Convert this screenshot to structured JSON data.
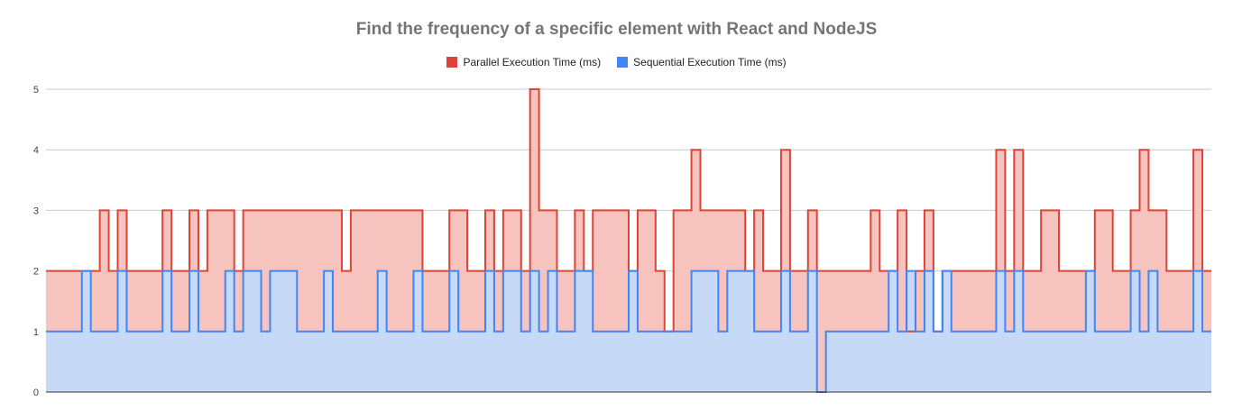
{
  "chart_data": {
    "type": "area",
    "title": "Find the frequency of a specific element with React and NodeJS",
    "xlabel": "",
    "ylabel": "",
    "ylim": [
      0,
      5
    ],
    "yticks": [
      "0",
      "1",
      "2",
      "3",
      "4",
      "5"
    ],
    "grid": true,
    "legend_position": "top",
    "series": [
      {
        "name": "Parallel Execution Time (ms)",
        "color": "#db4437",
        "fill": "#f6c3bf",
        "values": [
          2,
          2,
          2,
          2,
          2,
          2,
          3,
          2,
          3,
          2,
          2,
          2,
          2,
          3,
          2,
          2,
          3,
          2,
          3,
          3,
          3,
          2,
          3,
          3,
          3,
          3,
          3,
          3,
          3,
          3,
          3,
          3,
          3,
          2,
          3,
          3,
          3,
          3,
          3,
          3,
          3,
          3,
          2,
          2,
          2,
          3,
          3,
          2,
          2,
          3,
          2,
          3,
          3,
          2,
          5,
          3,
          3,
          2,
          2,
          3,
          2,
          3,
          3,
          3,
          3,
          2,
          3,
          3,
          2,
          1,
          3,
          3,
          4,
          3,
          3,
          3,
          3,
          3,
          2,
          3,
          2,
          2,
          4,
          2,
          2,
          3,
          2,
          2,
          2,
          2,
          2,
          2,
          3,
          2,
          2,
          3,
          1,
          2,
          3,
          1,
          2,
          2,
          2,
          2,
          2,
          2,
          4,
          2,
          4,
          2,
          2,
          3,
          3,
          2,
          2,
          2,
          2,
          3,
          3,
          2,
          2,
          3,
          4,
          3,
          3,
          2,
          2,
          2,
          4,
          2
        ]
      },
      {
        "name": "Sequential Execution Time (ms)",
        "color": "#4285f4",
        "fill": "#c6daf8",
        "values": [
          1,
          1,
          1,
          1,
          2,
          1,
          1,
          1,
          2,
          1,
          1,
          1,
          1,
          2,
          1,
          1,
          2,
          1,
          1,
          1,
          2,
          1,
          2,
          2,
          1,
          2,
          2,
          2,
          1,
          1,
          1,
          2,
          1,
          1,
          1,
          1,
          1,
          2,
          1,
          1,
          1,
          2,
          1,
          1,
          1,
          2,
          1,
          1,
          1,
          2,
          1,
          2,
          2,
          1,
          2,
          1,
          2,
          1,
          1,
          2,
          2,
          1,
          1,
          1,
          1,
          2,
          1,
          1,
          1,
          1,
          1,
          1,
          2,
          2,
          2,
          1,
          2,
          2,
          2,
          1,
          1,
          1,
          2,
          1,
          1,
          2,
          0,
          1,
          1,
          1,
          1,
          1,
          1,
          1,
          2,
          1,
          2,
          1,
          2,
          1,
          2,
          1,
          1,
          1,
          1,
          1,
          2,
          1,
          2,
          1,
          1,
          1,
          1,
          1,
          1,
          1,
          2,
          1,
          1,
          1,
          1,
          2,
          1,
          2,
          1,
          1,
          1,
          1,
          2,
          1
        ]
      }
    ]
  }
}
